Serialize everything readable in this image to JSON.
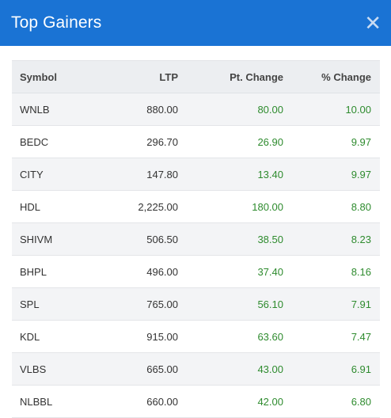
{
  "modal": {
    "title": "Top Gainers",
    "close_icon": "close-icon"
  },
  "table": {
    "headers": {
      "symbol": "Symbol",
      "ltp": "LTP",
      "pt_change": "Pt. Change",
      "pct_change": "% Change"
    },
    "rows": [
      {
        "symbol": "WNLB",
        "ltp": "880.00",
        "pt_change": "80.00",
        "pct_change": "10.00"
      },
      {
        "symbol": "BEDC",
        "ltp": "296.70",
        "pt_change": "26.90",
        "pct_change": "9.97"
      },
      {
        "symbol": "CITY",
        "ltp": "147.80",
        "pt_change": "13.40",
        "pct_change": "9.97"
      },
      {
        "symbol": "HDL",
        "ltp": "2,225.00",
        "pt_change": "180.00",
        "pct_change": "8.80"
      },
      {
        "symbol": "SHIVM",
        "ltp": "506.50",
        "pt_change": "38.50",
        "pct_change": "8.23"
      },
      {
        "symbol": "BHPL",
        "ltp": "496.00",
        "pt_change": "37.40",
        "pct_change": "8.16"
      },
      {
        "symbol": "SPL",
        "ltp": "765.00",
        "pt_change": "56.10",
        "pct_change": "7.91"
      },
      {
        "symbol": "KDL",
        "ltp": "915.00",
        "pt_change": "63.60",
        "pct_change": "7.47"
      },
      {
        "symbol": "VLBS",
        "ltp": "665.00",
        "pt_change": "43.00",
        "pct_change": "6.91"
      },
      {
        "symbol": "NLBBL",
        "ltp": "660.00",
        "pt_change": "42.00",
        "pct_change": "6.80"
      }
    ]
  },
  "colors": {
    "header_bg": "#1a73d4",
    "positive": "#2e8b2e"
  }
}
